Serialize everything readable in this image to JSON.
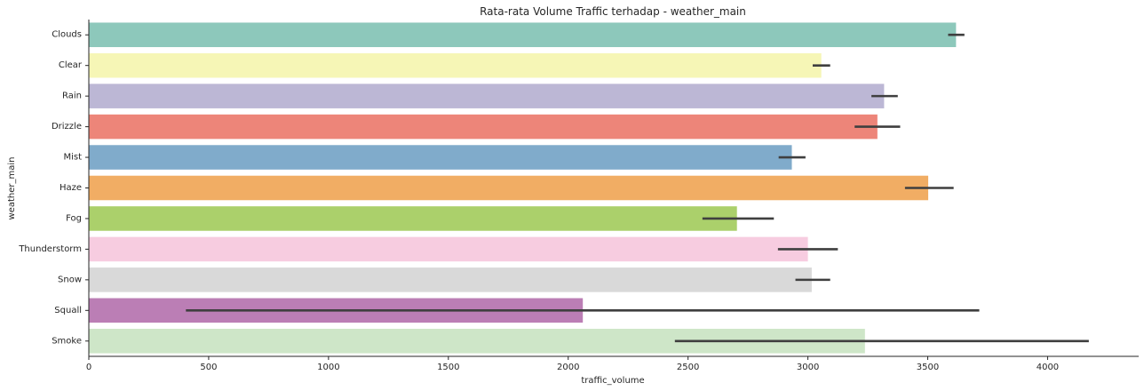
{
  "chart_data": {
    "type": "bar",
    "orientation": "horizontal",
    "title": "Rata-rata Volume Traffic terhadap - weather_main",
    "xlabel": "traffic_volume",
    "ylabel": "weather_main",
    "xlim": [
      0,
      4380
    ],
    "xticks": [
      0,
      500,
      1000,
      1500,
      2000,
      2500,
      3000,
      3500,
      4000
    ],
    "categories": [
      "Clouds",
      "Clear",
      "Rain",
      "Drizzle",
      "Mist",
      "Haze",
      "Fog",
      "Thunderstorm",
      "Snow",
      "Squall",
      "Smoke"
    ],
    "values": [
      3618,
      3056,
      3318,
      3290,
      2933,
      3502,
      2704,
      3000,
      3016,
      2061,
      3238
    ],
    "ci_low": [
      3585,
      3020,
      3265,
      3195,
      2878,
      3405,
      2560,
      2875,
      2948,
      405,
      2445
    ],
    "ci_high": [
      3653,
      3093,
      3375,
      3385,
      2990,
      3608,
      2858,
      3125,
      3093,
      3715,
      4172
    ],
    "colors": [
      "#8dc8bb",
      "#f6f6b6",
      "#bcb7d5",
      "#ed8579",
      "#80abcb",
      "#f1ad64",
      "#abd06b",
      "#f7cce0",
      "#d9d9d9",
      "#bb7eb5",
      "#cee6c8"
    ],
    "errorbar_color": "#3f3f3f",
    "grid": false,
    "legend": "none",
    "spines": "left-bottom"
  }
}
